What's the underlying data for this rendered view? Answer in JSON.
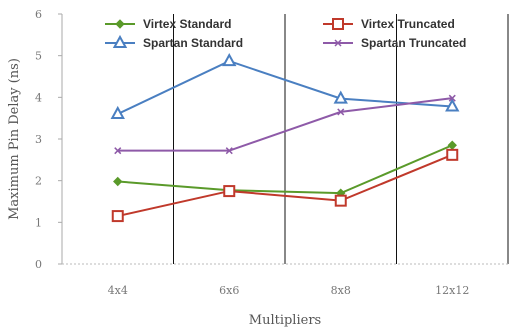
{
  "chart_data": {
    "type": "line",
    "title": "",
    "xlabel": "Multipliers",
    "ylabel": "Maximum Pin Delay (ns)",
    "categories": [
      "4x4",
      "6x6",
      "8x8",
      "12x12"
    ],
    "ylim": [
      0,
      6
    ],
    "yticks": [
      "0",
      "1",
      "2",
      "3",
      "4",
      "5",
      "6"
    ],
    "grid": "vertical lines",
    "legend_position": "top, two columns",
    "series": [
      {
        "name": "Virtex Standard",
        "values": [
          1.98,
          1.77,
          1.7,
          2.85
        ],
        "color": "#5a9a2a",
        "marker": "diamond"
      },
      {
        "name": "Spartan Standard",
        "values": [
          3.6,
          4.87,
          3.97,
          3.78
        ],
        "color": "#4a7fc1",
        "marker": "triangle-open"
      },
      {
        "name": "Virtex Truncated",
        "values": [
          1.15,
          1.75,
          1.52,
          2.62
        ],
        "color": "#c0392b",
        "marker": "square-open"
      },
      {
        "name": "Spartan Truncated",
        "values": [
          2.72,
          2.72,
          3.65,
          3.98
        ],
        "color": "#8e5aa8",
        "marker": "x"
      }
    ]
  }
}
